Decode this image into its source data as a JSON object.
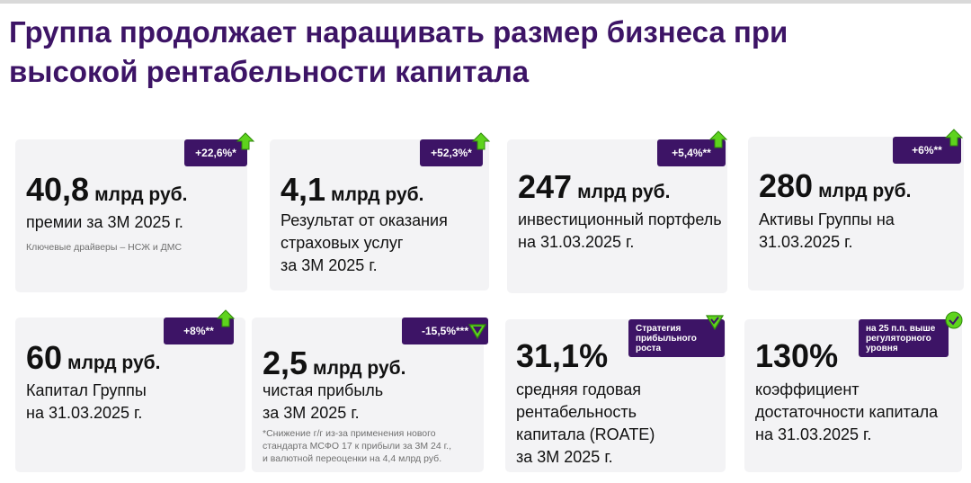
{
  "title": {
    "line1": "Группа продолжает наращивать размер бизнеса при",
    "line2": "высокой рентабельности капитала"
  },
  "colors": {
    "brand": "#3d1466",
    "up_arrow": "#5ed31d",
    "card_bg": "#f3f3f5"
  },
  "cards": [
    {
      "value": "40,8",
      "unit": "млрд руб.",
      "desc": [
        "премии за 3М 2025 г."
      ],
      "note": [
        "Ключевые драйверы – НСЖ и ДМС"
      ],
      "badge": [
        "+22,6%*"
      ],
      "icon": "arrow-up-icon"
    },
    {
      "value": "4,1",
      "unit": "млрд руб.",
      "desc": [
        "Результат от оказания",
        "страховых услуг",
        "за 3М 2025 г."
      ],
      "note": [],
      "badge": [
        "+52,3%*"
      ],
      "icon": "arrow-up-icon"
    },
    {
      "value": "247",
      "unit": "млрд руб.",
      "desc": [
        "инвестиционный портфель",
        "на 31.03.2025 г."
      ],
      "note": [],
      "badge": [
        "+5,4%**"
      ],
      "icon": "arrow-up-icon"
    },
    {
      "value": "280",
      "unit": "млрд руб.",
      "desc": [
        "Активы Группы на",
        "31.03.2025 г."
      ],
      "note": [],
      "badge": [
        "+6%**"
      ],
      "icon": "arrow-up-icon"
    },
    {
      "value": "60",
      "unit": "млрд руб.",
      "desc": [
        "Капитал Группы",
        "на 31.03.2025 г."
      ],
      "note": [],
      "badge": [
        "+8%**"
      ],
      "icon": "arrow-up-icon"
    },
    {
      "value": "2,5",
      "unit": "млрд руб.",
      "desc": [
        "чистая прибыль",
        "за 3М 2025 г."
      ],
      "note": [
        "*Снижение г/г из-за применения нового",
        "стандарта МСФО 17 к прибыли за 3М 24 г.,",
        "и валютной переоценки на 4,4 млрд руб."
      ],
      "badge": [
        "-15,5%***"
      ],
      "icon": "triangle-down-icon"
    },
    {
      "value": "31,1%",
      "unit": "",
      "desc": [
        "средняя годовая",
        "рентабельность",
        "капитала (ROATE)",
        "за 3М 2025 г."
      ],
      "note": [],
      "badge": [
        "Стратегия",
        "прибыльного",
        "роста"
      ],
      "icon": "check-triangle-icon"
    },
    {
      "value": "130%",
      "unit": "",
      "desc": [
        "коэффициент",
        "достаточности капитала",
        "на 31.03.2025 г."
      ],
      "note": [],
      "badge": [
        "на 25 п.п. выше",
        "регуляторного",
        "уровня"
      ],
      "icon": "check-circle-icon"
    }
  ]
}
